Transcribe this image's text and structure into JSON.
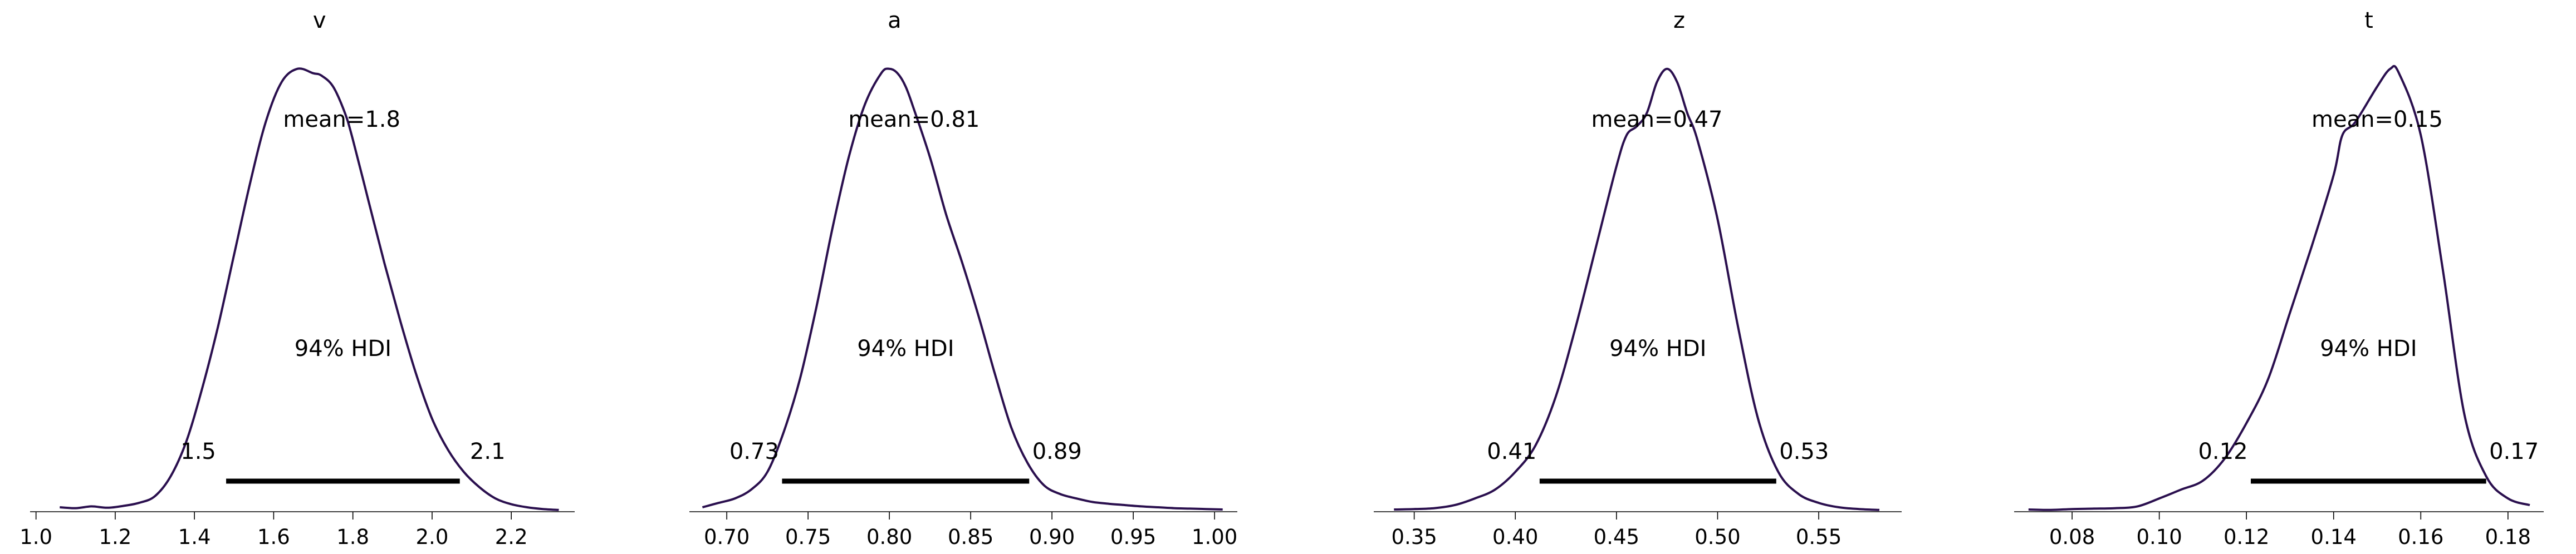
{
  "chart_data": [
    {
      "type": "line",
      "title": "v",
      "series_color": "#2a0f4e",
      "hdi_label": "94% HDI",
      "mean": 1.8,
      "mean_label": "mean=1.8",
      "hdi": [
        1.48,
        2.07
      ],
      "hdi_low_label": "1.5",
      "hdi_high_label": "2.1",
      "xlim": [
        0.985,
        2.36
      ],
      "ylim": [
        0,
        1.08
      ],
      "ticks": [
        1.0,
        1.2,
        1.4,
        1.6,
        1.8,
        2.0,
        2.2
      ],
      "tick_labels": [
        "1.0",
        "1.2",
        "1.4",
        "1.6",
        "1.8",
        "2.0",
        "2.2"
      ],
      "x": [
        1.06,
        1.1,
        1.14,
        1.18,
        1.22,
        1.26,
        1.3,
        1.34,
        1.38,
        1.42,
        1.46,
        1.5,
        1.54,
        1.58,
        1.62,
        1.66,
        1.7,
        1.72,
        1.75,
        1.78,
        1.8,
        1.84,
        1.88,
        1.92,
        1.96,
        2.0,
        2.04,
        2.08,
        2.12,
        2.16,
        2.2,
        2.24,
        2.28,
        2.32
      ],
      "y": [
        0.01,
        0.008,
        0.012,
        0.009,
        0.013,
        0.02,
        0.035,
        0.08,
        0.16,
        0.28,
        0.42,
        0.58,
        0.74,
        0.88,
        0.97,
        1.0,
        0.99,
        0.985,
        0.96,
        0.9,
        0.84,
        0.7,
        0.56,
        0.43,
        0.31,
        0.21,
        0.14,
        0.09,
        0.055,
        0.03,
        0.017,
        0.01,
        0.006,
        0.004
      ]
    },
    {
      "type": "line",
      "title": "a",
      "series_color": "#2a0f4e",
      "hdi_label": "94% HDI",
      "mean": 0.81,
      "mean_label": "mean=0.81",
      "hdi": [
        0.734,
        0.886
      ],
      "hdi_low_label": "0.73",
      "hdi_high_label": "0.89",
      "xlim": [
        0.677,
        1.014
      ],
      "ylim": [
        0,
        1.08
      ],
      "ticks": [
        0.7,
        0.75,
        0.8,
        0.85,
        0.9,
        0.95,
        1.0
      ],
      "tick_labels": [
        "0.70",
        "0.75",
        "0.80",
        "0.85",
        "0.90",
        "0.95",
        "1.00"
      ],
      "x": [
        0.685,
        0.695,
        0.705,
        0.715,
        0.725,
        0.735,
        0.745,
        0.755,
        0.765,
        0.775,
        0.785,
        0.795,
        0.8,
        0.805,
        0.81,
        0.815,
        0.825,
        0.835,
        0.845,
        0.855,
        0.865,
        0.875,
        0.885,
        0.895,
        0.905,
        0.915,
        0.925,
        0.935,
        0.945,
        0.955,
        0.965,
        0.975,
        0.985,
        0.995,
        1.005
      ],
      "y": [
        0.01,
        0.02,
        0.03,
        0.05,
        0.09,
        0.18,
        0.3,
        0.46,
        0.64,
        0.8,
        0.92,
        0.99,
        1.0,
        0.99,
        0.96,
        0.91,
        0.8,
        0.67,
        0.56,
        0.44,
        0.31,
        0.19,
        0.11,
        0.06,
        0.04,
        0.03,
        0.022,
        0.018,
        0.015,
        0.012,
        0.01,
        0.008,
        0.007,
        0.006,
        0.005
      ]
    },
    {
      "type": "line",
      "title": "z",
      "series_color": "#2a0f4e",
      "hdi_label": "94% HDI",
      "mean": 0.47,
      "mean_label": "mean=0.47",
      "hdi": [
        0.412,
        0.529
      ],
      "hdi_low_label": "0.41",
      "hdi_high_label": "0.53",
      "xlim": [
        0.33,
        0.591
      ],
      "ylim": [
        0,
        1.08
      ],
      "ticks": [
        0.35,
        0.4,
        0.45,
        0.5,
        0.55
      ],
      "tick_labels": [
        "0.35",
        "0.40",
        "0.45",
        "0.50",
        "0.55"
      ],
      "x": [
        0.34,
        0.35,
        0.36,
        0.37,
        0.38,
        0.39,
        0.4,
        0.41,
        0.42,
        0.43,
        0.44,
        0.45,
        0.455,
        0.46,
        0.465,
        0.47,
        0.475,
        0.48,
        0.485,
        0.49,
        0.5,
        0.51,
        0.52,
        0.53,
        0.54,
        0.55,
        0.56,
        0.57,
        0.58
      ],
      "y": [
        0.005,
        0.006,
        0.008,
        0.015,
        0.03,
        0.05,
        0.09,
        0.15,
        0.26,
        0.42,
        0.6,
        0.78,
        0.85,
        0.87,
        0.9,
        0.97,
        1.0,
        0.97,
        0.9,
        0.84,
        0.66,
        0.42,
        0.21,
        0.09,
        0.04,
        0.02,
        0.01,
        0.006,
        0.004
      ]
    },
    {
      "type": "line",
      "title": "t",
      "series_color": "#2a0f4e",
      "hdi_label": "94% HDI",
      "mean": 0.15,
      "mean_label": "mean=0.15",
      "hdi": [
        0.121,
        0.175
      ],
      "hdi_low_label": "0.12",
      "hdi_high_label": "0.17",
      "xlim": [
        0.0667,
        0.1882
      ],
      "ylim": [
        0,
        1.08
      ],
      "ticks": [
        0.08,
        0.1,
        0.12,
        0.14,
        0.16,
        0.18
      ],
      "tick_labels": [
        "0.08",
        "0.10",
        "0.12",
        "0.14",
        "0.16",
        "0.18"
      ],
      "x": [
        0.07,
        0.075,
        0.08,
        0.085,
        0.09,
        0.095,
        0.1,
        0.105,
        0.11,
        0.115,
        0.12,
        0.125,
        0.13,
        0.135,
        0.14,
        0.142,
        0.145,
        0.15,
        0.153,
        0.155,
        0.16,
        0.165,
        0.17,
        0.175,
        0.18,
        0.185
      ],
      "y": [
        0.005,
        0.004,
        0.006,
        0.007,
        0.008,
        0.012,
        0.03,
        0.05,
        0.07,
        0.12,
        0.2,
        0.3,
        0.45,
        0.6,
        0.76,
        0.85,
        0.88,
        0.96,
        1.0,
        0.99,
        0.85,
        0.55,
        0.22,
        0.08,
        0.03,
        0.015
      ]
    }
  ]
}
